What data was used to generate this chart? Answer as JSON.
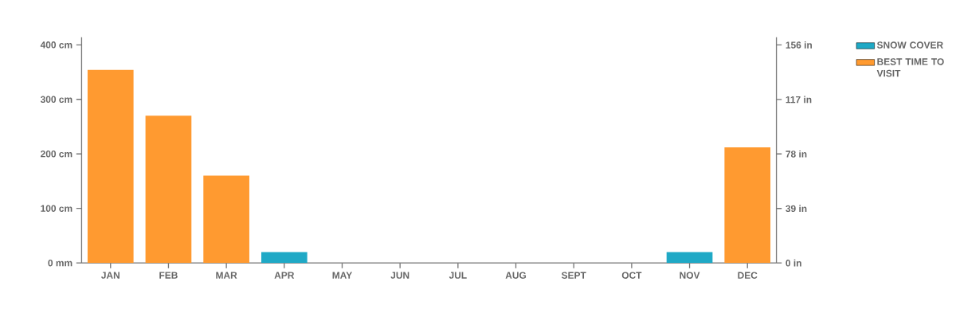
{
  "chart_data": {
    "type": "bar",
    "categories": [
      "JAN",
      "FEB",
      "MAR",
      "APR",
      "MAY",
      "JUN",
      "JUL",
      "AUG",
      "SEPT",
      "OCT",
      "NOV",
      "DEC"
    ],
    "series": [
      {
        "name": "SNOW COVER",
        "color": "#1fa9c6",
        "values": [
          null,
          null,
          null,
          20,
          null,
          null,
          null,
          null,
          null,
          null,
          20,
          null
        ]
      },
      {
        "name": "BEST TIME TO VISIT",
        "color": "#ff9a30",
        "values": [
          354,
          270,
          160,
          null,
          null,
          null,
          null,
          null,
          null,
          null,
          null,
          212
        ]
      }
    ],
    "ylim": [
      0,
      414
    ],
    "yticks": [
      {
        "value": 0,
        "label": "0 mm"
      },
      {
        "value": 100,
        "label": "100 cm"
      },
      {
        "value": 200,
        "label": "200 cm"
      },
      {
        "value": 300,
        "label": "300 cm"
      },
      {
        "value": 400,
        "label": "400 cm"
      }
    ],
    "y2lim": [
      0,
      161.5
    ],
    "y2ticks": [
      {
        "value": 0,
        "label": "0 in"
      },
      {
        "value": 39,
        "label": "39 in"
      },
      {
        "value": 78,
        "label": "78 in"
      },
      {
        "value": 117,
        "label": "117 in"
      },
      {
        "value": 156,
        "label": "156 in"
      }
    ],
    "legend": "top right"
  }
}
